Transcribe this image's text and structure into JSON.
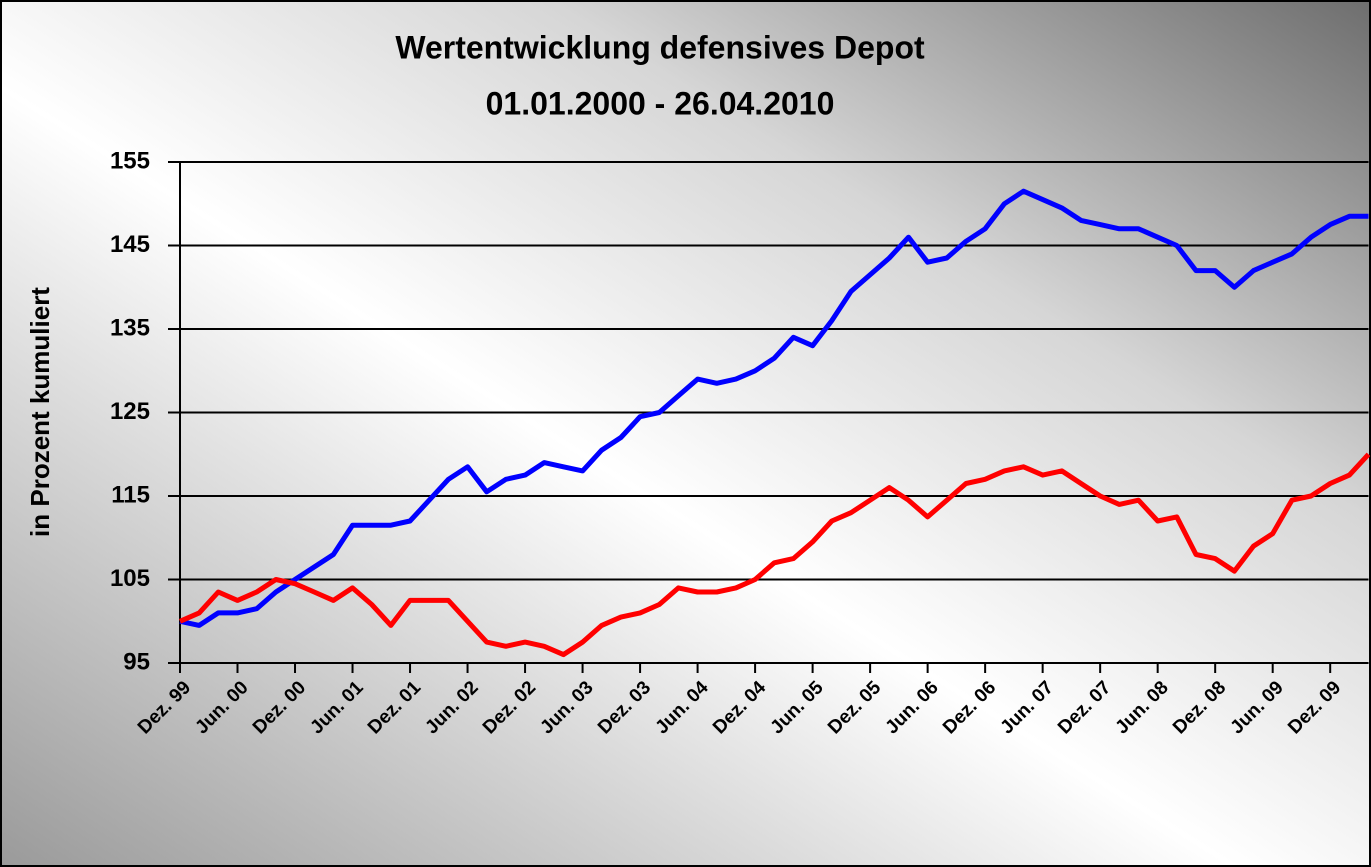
{
  "chart_data": {
    "type": "line",
    "title": "Wertentwicklung defensives Depot",
    "subtitle": "01.01.2000 - 26.04.2010",
    "y_label": "in Prozent kumuliert",
    "categories": [
      "Dez. 99",
      null,
      null,
      "Jun. 00",
      null,
      null,
      "Dez. 00",
      null,
      null,
      "Jun. 01",
      null,
      null,
      "Dez. 01",
      null,
      null,
      "Jun. 02",
      null,
      null,
      "Dez. 02",
      null,
      null,
      "Jun. 03",
      null,
      null,
      "Dez. 03",
      null,
      null,
      "Jun. 04",
      null,
      null,
      "Dez. 04",
      null,
      null,
      "Jun. 05",
      null,
      null,
      "Dez. 05",
      null,
      null,
      "Jun. 06",
      null,
      null,
      "Dez. 06",
      null,
      null,
      "Jun. 07",
      null,
      null,
      "Dez. 07",
      null,
      null,
      "Jun. 08",
      null,
      null,
      "Dez. 08",
      null,
      null,
      "Jun. 09",
      null,
      null,
      "Dez. 09",
      null,
      null
    ],
    "series": [
      {
        "color": "#0000ff",
        "values": [
          100,
          99.5,
          101,
          101,
          101.5,
          103.5,
          105,
          106.5,
          108,
          111.5,
          111.5,
          111.5,
          112,
          114.5,
          117,
          118.5,
          115.5,
          117,
          117.5,
          119,
          118.5,
          118,
          120.5,
          122,
          124.5,
          125,
          127,
          129,
          128.5,
          129,
          130,
          131.5,
          134,
          133,
          136,
          139.5,
          141.5,
          143.5,
          146,
          143,
          143.5,
          145.5,
          147,
          150,
          151.5,
          150.5,
          149.5,
          148,
          147.5,
          147,
          147,
          146,
          145,
          142,
          142,
          140,
          142,
          143,
          144,
          146,
          147.5,
          148.5,
          148.5
        ]
      },
      {
        "color": "#ff0000",
        "values": [
          100,
          101,
          103.5,
          102.5,
          103.5,
          105,
          104.5,
          103.5,
          102.5,
          104,
          102,
          99.5,
          102.5,
          102.5,
          102.5,
          100,
          97.5,
          97,
          97.5,
          97,
          96,
          97.5,
          99.5,
          100.5,
          101,
          102,
          104,
          103.5,
          103.5,
          104,
          105,
          107,
          107.5,
          109.5,
          112,
          113,
          114.5,
          116,
          114.5,
          112.5,
          114.5,
          116.5,
          117,
          118,
          118.5,
          117.5,
          118,
          116.5,
          115,
          114,
          114.5,
          112,
          112.5,
          108,
          107.5,
          106,
          109,
          110.5,
          114.5,
          115,
          116.5,
          117.5,
          120
        ]
      }
    ],
    "ylim": [
      95,
      155
    ],
    "yticks": [
      95,
      105,
      115,
      125,
      135,
      145,
      155
    ],
    "grid": true
  }
}
